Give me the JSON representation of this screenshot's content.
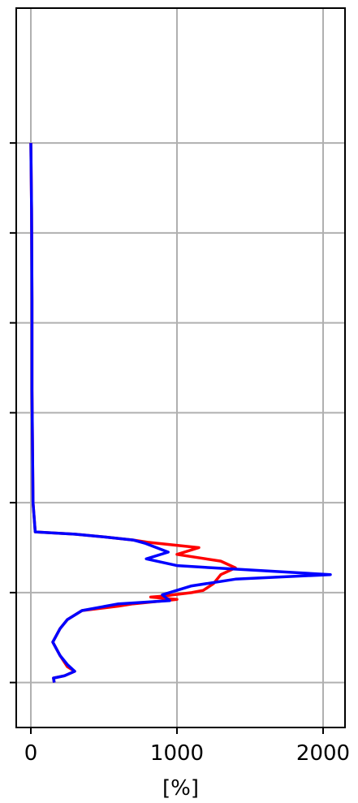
{
  "chart_data": {
    "type": "line",
    "xlabel": "[%]",
    "ylabel": "",
    "xlim": [
      -100,
      2150
    ],
    "ylim": [
      1.3,
      -0.3
    ],
    "x_ticks": [
      0,
      1000,
      2000
    ],
    "x_tick_labels": [
      "0",
      "1000",
      "2000"
    ],
    "y_ticks": [
      0,
      0.2,
      0.4,
      0.6,
      0.8,
      1.0,
      1.2
    ],
    "y_tick_labels": [
      "",
      "",
      "",
      "",
      "",
      "",
      ""
    ],
    "grid": true,
    "legend": null,
    "series": [
      {
        "color": "#ff0000",
        "points": [
          [
            0,
            0.0
          ],
          [
            5,
            0.15
          ],
          [
            8,
            0.35
          ],
          [
            8,
            0.55
          ],
          [
            15,
            0.8
          ],
          [
            30,
            0.865
          ],
          [
            300,
            0.87
          ],
          [
            500,
            0.876
          ],
          [
            700,
            0.883
          ],
          [
            800,
            0.888
          ],
          [
            1150,
            0.9
          ],
          [
            1000,
            0.915
          ],
          [
            1300,
            0.93
          ],
          [
            1400,
            0.945
          ],
          [
            1300,
            0.96
          ],
          [
            1250,
            0.98
          ],
          [
            1180,
            0.995
          ],
          [
            1100,
            1.0
          ],
          [
            900,
            1.008
          ],
          [
            820,
            1.01
          ],
          [
            1000,
            1.015
          ],
          [
            700,
            1.025
          ],
          [
            600,
            1.03
          ],
          [
            350,
            1.04
          ],
          [
            250,
            1.06
          ],
          [
            200,
            1.08
          ],
          [
            150,
            1.11
          ],
          [
            200,
            1.14
          ],
          [
            250,
            1.165
          ],
          [
            300,
            1.175
          ],
          [
            230,
            1.185
          ],
          [
            155,
            1.19
          ],
          [
            160,
            1.2
          ]
        ]
      },
      {
        "color": "#0000ff",
        "points": [
          [
            0,
            0.0
          ],
          [
            5,
            0.15
          ],
          [
            8,
            0.35
          ],
          [
            8,
            0.55
          ],
          [
            15,
            0.8
          ],
          [
            30,
            0.865
          ],
          [
            300,
            0.87
          ],
          [
            500,
            0.876
          ],
          [
            700,
            0.883
          ],
          [
            780,
            0.89
          ],
          [
            940,
            0.91
          ],
          [
            790,
            0.925
          ],
          [
            1000,
            0.94
          ],
          [
            1250,
            0.945
          ],
          [
            2050,
            0.96
          ],
          [
            1400,
            0.97
          ],
          [
            1100,
            0.985
          ],
          [
            1000,
            0.995
          ],
          [
            900,
            1.005
          ],
          [
            950,
            1.018
          ],
          [
            600,
            1.025
          ],
          [
            350,
            1.04
          ],
          [
            250,
            1.06
          ],
          [
            200,
            1.08
          ],
          [
            150,
            1.11
          ],
          [
            200,
            1.14
          ],
          [
            250,
            1.16
          ],
          [
            300,
            1.175
          ],
          [
            230,
            1.185
          ],
          [
            155,
            1.19
          ],
          [
            160,
            1.2
          ]
        ]
      }
    ]
  }
}
